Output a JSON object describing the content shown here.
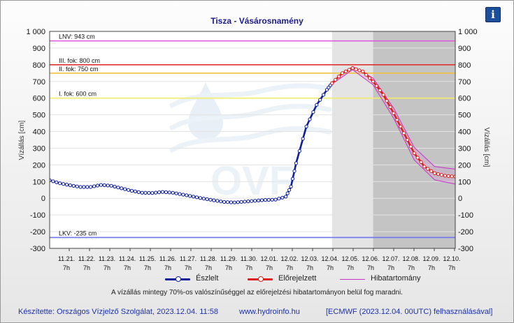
{
  "title": "Tisza - Vásárosnamény",
  "info_label": "i",
  "chart_data": {
    "type": "line",
    "ylabel": "Vízállás [cm]",
    "ylim": [
      -300,
      1000
    ],
    "yticks": [
      -300,
      -200,
      -100,
      0,
      100,
      200,
      300,
      400,
      500,
      600,
      700,
      800,
      900,
      1000
    ],
    "ytick_labels": [
      "-300",
      "-200",
      "-100",
      "0",
      "100",
      "200",
      "300",
      "400",
      "500",
      "600",
      "700",
      "800",
      "900",
      "1 000"
    ],
    "xlim": [
      "2023.11.20 13:00",
      "2023.12.10 07:00"
    ],
    "x_ticks": [
      {
        "date": "11.21.",
        "hour": "7h"
      },
      {
        "date": "11.22.",
        "hour": "7h"
      },
      {
        "date": "11.23.",
        "hour": "7h"
      },
      {
        "date": "11.24.",
        "hour": "7h"
      },
      {
        "date": "11.25.",
        "hour": "7h"
      },
      {
        "date": "11.26.",
        "hour": "7h"
      },
      {
        "date": "11.27.",
        "hour": "7h"
      },
      {
        "date": "11.28.",
        "hour": "7h"
      },
      {
        "date": "11.29.",
        "hour": "7h"
      },
      {
        "date": "11.30.",
        "hour": "7h"
      },
      {
        "date": "12.01.",
        "hour": "7h"
      },
      {
        "date": "12.02.",
        "hour": "7h"
      },
      {
        "date": "12.03.",
        "hour": "7h"
      },
      {
        "date": "12.04.",
        "hour": "7h"
      },
      {
        "date": "12.05.",
        "hour": "7h"
      },
      {
        "date": "12.06.",
        "hour": "7h"
      },
      {
        "date": "12.07.",
        "hour": "7h"
      },
      {
        "date": "12.08.",
        "hour": "7h"
      },
      {
        "date": "12.09.",
        "hour": "7h"
      },
      {
        "date": "12.10.",
        "hour": "7h"
      }
    ],
    "shaded_periods": [
      {
        "from": "2023.12.04 07:00",
        "to": "2023.12.06 07:00",
        "color": "#e4e4e4"
      },
      {
        "from": "2023.12.06 07:00",
        "to": "2023.12.10 07:00",
        "color": "#c4c4c4"
      }
    ],
    "thresholds": [
      {
        "label": "LNV: 943 cm",
        "value": 943,
        "color": "#dd55dd"
      },
      {
        "label": "III. fok: 800 cm",
        "value": 800,
        "color": "#e03030"
      },
      {
        "label": "II. fok: 750 cm",
        "value": 750,
        "color": "#f2c23c"
      },
      {
        "label": "I. fok: 600 cm",
        "value": 600,
        "color": "#f2ec6a"
      },
      {
        "label": "LKV: -235 cm",
        "value": -235,
        "color": "#6f73ef"
      }
    ],
    "series": [
      {
        "name": "Észlelt",
        "color": "#0f1f9c",
        "points": [
          [
            "2023.11.20 13:00",
            108
          ],
          [
            "2023.11.21 01:00",
            90
          ],
          [
            "2023.11.21 13:00",
            78
          ],
          [
            "2023.11.22 01:00",
            68
          ],
          [
            "2023.11.22 13:00",
            68
          ],
          [
            "2023.11.23 01:00",
            80
          ],
          [
            "2023.11.23 13:00",
            75
          ],
          [
            "2023.11.24 01:00",
            60
          ],
          [
            "2023.11.24 13:00",
            45
          ],
          [
            "2023.11.25 01:00",
            33
          ],
          [
            "2023.11.25 13:00",
            32
          ],
          [
            "2023.11.26 01:00",
            38
          ],
          [
            "2023.11.26 13:00",
            33
          ],
          [
            "2023.11.27 01:00",
            22
          ],
          [
            "2023.11.27 13:00",
            10
          ],
          [
            "2023.11.28 01:00",
            -2
          ],
          [
            "2023.11.28 13:00",
            -12
          ],
          [
            "2023.11.29 01:00",
            -22
          ],
          [
            "2023.11.29 13:00",
            -25
          ],
          [
            "2023.11.30 01:00",
            -20
          ],
          [
            "2023.11.30 13:00",
            -15
          ],
          [
            "2023.12.01 01:00",
            -10
          ],
          [
            "2023.12.01 13:00",
            -8
          ],
          [
            "2023.12.02 01:00",
            10
          ],
          [
            "2023.12.02 07:00",
            70
          ],
          [
            "2023.12.02 13:00",
            210
          ],
          [
            "2023.12.03 01:00",
            430
          ],
          [
            "2023.12.03 13:00",
            560
          ],
          [
            "2023.12.04 01:00",
            650
          ],
          [
            "2023.12.04 07:00",
            690
          ]
        ]
      },
      {
        "name": "Előrejelzett",
        "color": "#dd1f1f",
        "points": [
          [
            "2023.12.04 07:00",
            690
          ],
          [
            "2023.12.04 19:00",
            750
          ],
          [
            "2023.12.05 07:00",
            780
          ],
          [
            "2023.12.05 19:00",
            760
          ],
          [
            "2023.12.06 07:00",
            700
          ],
          [
            "2023.12.06 19:00",
            620
          ],
          [
            "2023.12.07 07:00",
            510
          ],
          [
            "2023.12.07 19:00",
            390
          ],
          [
            "2023.12.08 07:00",
            270
          ],
          [
            "2023.12.08 19:00",
            190
          ],
          [
            "2023.12.09 07:00",
            150
          ],
          [
            "2023.12.09 19:00",
            135
          ],
          [
            "2023.12.10 07:00",
            130
          ]
        ]
      },
      {
        "name": "Hibatartomány",
        "color": "#c832c8",
        "upper": [
          [
            "2023.12.04 07:00",
            695
          ],
          [
            "2023.12.05 07:00",
            790
          ],
          [
            "2023.12.06 07:00",
            720
          ],
          [
            "2023.12.07 07:00",
            540
          ],
          [
            "2023.12.08 07:00",
            305
          ],
          [
            "2023.12.09 07:00",
            190
          ],
          [
            "2023.12.10 07:00",
            175
          ]
        ],
        "lower": [
          [
            "2023.12.04 07:00",
            685
          ],
          [
            "2023.12.05 07:00",
            770
          ],
          [
            "2023.12.06 07:00",
            680
          ],
          [
            "2023.12.07 07:00",
            480
          ],
          [
            "2023.12.08 07:00",
            230
          ],
          [
            "2023.12.09 07:00",
            110
          ],
          [
            "2023.12.10 07:00",
            85
          ]
        ]
      }
    ]
  },
  "legend": {
    "observed": "Észlelt",
    "forecast": "Előrejelzett",
    "error_band": "Hibatartomány"
  },
  "note": "A vízállás mintegy 70%-os valószínűséggel az előrejelzési hibatartományon belül fog maradni.",
  "footer": {
    "made_by": "Készítette: Országos Vízjelző Szolgálat, 2023.12.04. 11:58",
    "website": "www.hydroinfo.hu",
    "ecmwf": "[ECMWF (2023.12.04. 00UTC) felhasználásával]"
  },
  "watermark": "OVF"
}
